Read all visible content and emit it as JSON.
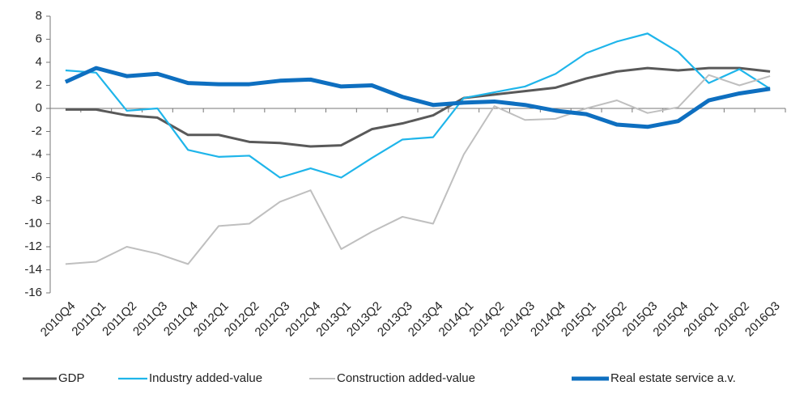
{
  "chart_data": {
    "type": "line",
    "categories": [
      "2010Q4",
      "2011Q1",
      "2011Q2",
      "2011Q3",
      "2011Q4",
      "2012Q1",
      "2012Q2",
      "2012Q3",
      "2012Q4",
      "2013Q1",
      "2013Q2",
      "2013Q3",
      "2013Q4",
      "2014Q1",
      "2014Q2",
      "2014Q3",
      "2014Q4",
      "2015Q1",
      "2015Q2",
      "2015Q3",
      "2015Q4",
      "2016Q1",
      "2016Q2",
      "2016Q3"
    ],
    "series": [
      {
        "name": "GDP",
        "color": "#595959",
        "values": [
          -0.1,
          -0.1,
          -0.6,
          -0.8,
          -2.3,
          -2.3,
          -2.9,
          -3.0,
          -3.3,
          -3.2,
          -1.8,
          -1.3,
          -0.6,
          0.9,
          1.2,
          1.5,
          1.8,
          2.6,
          3.2,
          3.5,
          3.3,
          3.5,
          3.5,
          3.2
        ]
      },
      {
        "name": "Industry added-value",
        "color": "#1fb5ea",
        "values": [
          3.3,
          3.1,
          -0.2,
          0.0,
          -3.6,
          -4.2,
          -4.1,
          -6.0,
          -5.2,
          -6.0,
          -4.3,
          -2.7,
          -2.5,
          0.9,
          1.4,
          1.9,
          3.0,
          4.8,
          5.8,
          6.5,
          4.9,
          2.2,
          3.4,
          1.7
        ]
      },
      {
        "name": "Construction added-value",
        "color": "#bfbfbf",
        "values": [
          -13.5,
          -13.3,
          -12.0,
          -12.6,
          -13.5,
          -10.2,
          -10.0,
          -8.1,
          -7.1,
          -12.2,
          -10.7,
          -9.4,
          -10.0,
          -4.0,
          0.2,
          -1.0,
          -0.9,
          0.0,
          0.7,
          -0.4,
          0.1,
          2.9,
          2.0,
          2.8
        ]
      },
      {
        "name": "Real estate service a.v.",
        "color": "#0e6fc0",
        "values": [
          2.3,
          3.5,
          2.8,
          3.0,
          2.2,
          2.1,
          2.1,
          2.4,
          2.5,
          1.9,
          2.0,
          1.0,
          0.3,
          0.5,
          0.6,
          0.3,
          -0.2,
          -0.5,
          -1.4,
          -1.6,
          -1.1,
          0.7,
          1.3,
          1.7
        ]
      }
    ],
    "ylim": [
      -16,
      8
    ],
    "yticks": [
      -16,
      -14,
      -12,
      -10,
      -8,
      -6,
      -4,
      -2,
      0,
      2,
      4,
      6,
      8
    ],
    "legend": "bottom"
  }
}
